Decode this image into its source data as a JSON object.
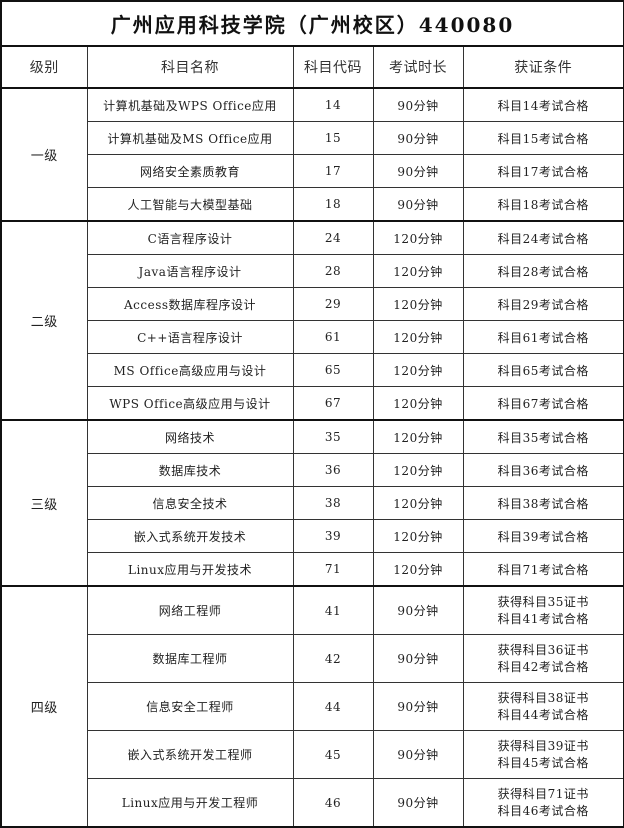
{
  "title": "广州应用科技学院（广州校区）440080",
  "headers": [
    "级别",
    "科目名称",
    "科目代码",
    "考试时长",
    "获证条件"
  ],
  "groups": [
    {
      "level": "一级",
      "rows": [
        {
          "name": "计算机基础及WPS Office应用",
          "code": "14",
          "duration": "90分钟",
          "condition": [
            "科目14考试合格"
          ]
        },
        {
          "name": "计算机基础及MS Office应用",
          "code": "15",
          "duration": "90分钟",
          "condition": [
            "科目15考试合格"
          ]
        },
        {
          "name": "网络安全素质教育",
          "code": "17",
          "duration": "90分钟",
          "condition": [
            "科目17考试合格"
          ]
        },
        {
          "name": "人工智能与大模型基础",
          "code": "18",
          "duration": "90分钟",
          "condition": [
            "科目18考试合格"
          ]
        }
      ]
    },
    {
      "level": "二级",
      "rows": [
        {
          "name": "C语言程序设计",
          "code": "24",
          "duration": "120分钟",
          "condition": [
            "科目24考试合格"
          ]
        },
        {
          "name": "Java语言程序设计",
          "code": "28",
          "duration": "120分钟",
          "condition": [
            "科目28考试合格"
          ]
        },
        {
          "name": "Access数据库程序设计",
          "code": "29",
          "duration": "120分钟",
          "condition": [
            "科目29考试合格"
          ]
        },
        {
          "name": "C++语言程序设计",
          "code": "61",
          "duration": "120分钟",
          "condition": [
            "科目61考试合格"
          ]
        },
        {
          "name": "MS Office高级应用与设计",
          "code": "65",
          "duration": "120分钟",
          "condition": [
            "科目65考试合格"
          ]
        },
        {
          "name": "WPS Office高级应用与设计",
          "code": "67",
          "duration": "120分钟",
          "condition": [
            "科目67考试合格"
          ]
        }
      ]
    },
    {
      "level": "三级",
      "rows": [
        {
          "name": "网络技术",
          "code": "35",
          "duration": "120分钟",
          "condition": [
            "科目35考试合格"
          ]
        },
        {
          "name": "数据库技术",
          "code": "36",
          "duration": "120分钟",
          "condition": [
            "科目36考试合格"
          ]
        },
        {
          "name": "信息安全技术",
          "code": "38",
          "duration": "120分钟",
          "condition": [
            "科目38考试合格"
          ]
        },
        {
          "name": "嵌入式系统开发技术",
          "code": "39",
          "duration": "120分钟",
          "condition": [
            "科目39考试合格"
          ]
        },
        {
          "name": "Linux应用与开发技术",
          "code": "71",
          "duration": "120分钟",
          "condition": [
            "科目71考试合格"
          ]
        }
      ]
    },
    {
      "level": "四级",
      "rows": [
        {
          "name": "网络工程师",
          "code": "41",
          "duration": "90分钟",
          "condition": [
            "获得科目35证书",
            "科目41考试合格"
          ]
        },
        {
          "name": "数据库工程师",
          "code": "42",
          "duration": "90分钟",
          "condition": [
            "获得科目36证书",
            "科目42考试合格"
          ]
        },
        {
          "name": "信息安全工程师",
          "code": "44",
          "duration": "90分钟",
          "condition": [
            "获得科目38证书",
            "科目44考试合格"
          ]
        },
        {
          "name": "嵌入式系统开发工程师",
          "code": "45",
          "duration": "90分钟",
          "condition": [
            "获得科目39证书",
            "科目45考试合格"
          ]
        },
        {
          "name": "Linux应用与开发工程师",
          "code": "46",
          "duration": "90分钟",
          "condition": [
            "获得科目71证书",
            "科目46考试合格"
          ]
        }
      ]
    }
  ]
}
